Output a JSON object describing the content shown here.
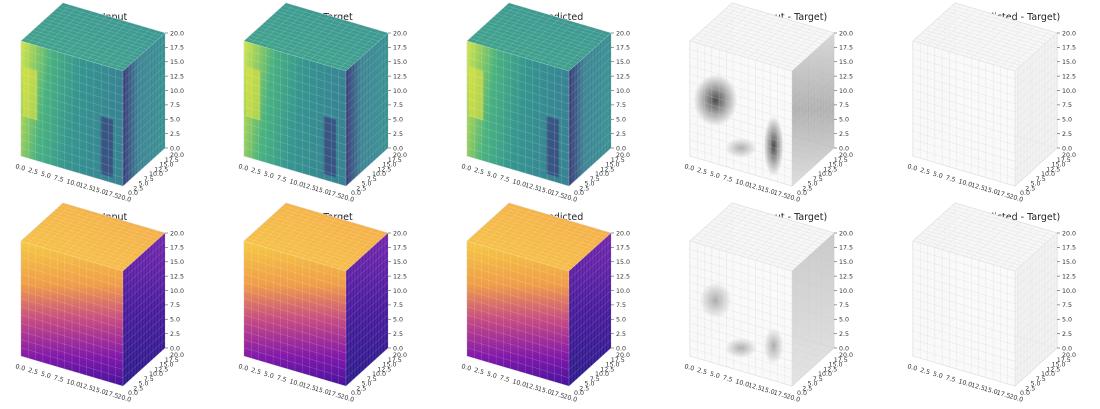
{
  "figure": {
    "rows": [
      {
        "colormap": "viridis"
      },
      {
        "colormap": "plasma"
      }
    ],
    "panels": [
      {
        "title": "Input"
      },
      {
        "title": "Target"
      },
      {
        "title": "Predicted"
      },
      {
        "title": "AE (Input - Target)"
      },
      {
        "title": "AE (Predicted - Target)"
      }
    ]
  },
  "chart_data": {
    "type": "heatmap",
    "subtype": "3d-voxel-grid",
    "grid": "on",
    "axes": {
      "x": {
        "range": [
          0,
          20
        ],
        "ticks": [
          "0.0",
          "2.5",
          "5.0",
          "7.5",
          "10.0",
          "12.5",
          "15.0",
          "17.5",
          "20.0"
        ]
      },
      "y": {
        "range": [
          0,
          20
        ],
        "ticks": [
          "0.0",
          "2.5",
          "5.0",
          "7.5",
          "10.0",
          "12.5",
          "15.0",
          "17.5",
          "20.0"
        ]
      },
      "z": {
        "range": [
          0,
          20
        ],
        "ticks": [
          "0.0",
          "2.5",
          "5.0",
          "7.5",
          "10.0",
          "12.5",
          "15.0",
          "17.5",
          "20.0"
        ]
      }
    },
    "colors": {
      "viridis": [
        "#440154",
        "#3b528b",
        "#21918c",
        "#5ec962",
        "#fde725"
      ],
      "plasma": [
        "#0d0887",
        "#7e03a8",
        "#cc4778",
        "#f89540",
        "#f0f921"
      ],
      "error": [
        "#ffffff",
        "#000000"
      ]
    }
  }
}
